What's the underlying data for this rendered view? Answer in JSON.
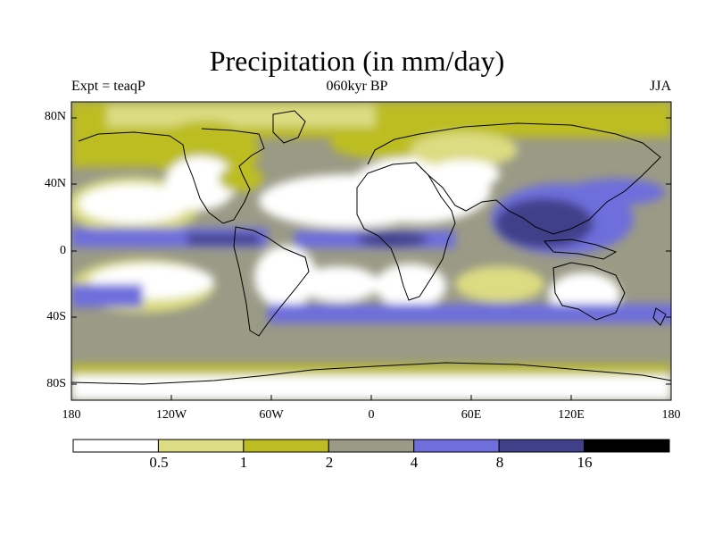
{
  "title": "Precipitation (in mm/day)",
  "subtitle_left": "Expt = teaqP",
  "subtitle_center": "060kyr BP",
  "subtitle_right": "JJA",
  "lat_labels": [
    "80N",
    "40N",
    "0",
    "40S",
    "80S"
  ],
  "lon_labels": [
    "180",
    "120W",
    "60W",
    "0",
    "60E",
    "120E",
    "180"
  ],
  "colorbar": {
    "labels": [
      "0.5",
      "1",
      "2",
      "4",
      "8",
      "16"
    ],
    "colors": [
      "#ffffff",
      "#dcdc82",
      "#bdbd23",
      "#9a9a86",
      "#6e6edc",
      "#40408a",
      "#000000"
    ]
  },
  "colors": {
    "land_outline": "#000000",
    "frame": "#000000"
  }
}
